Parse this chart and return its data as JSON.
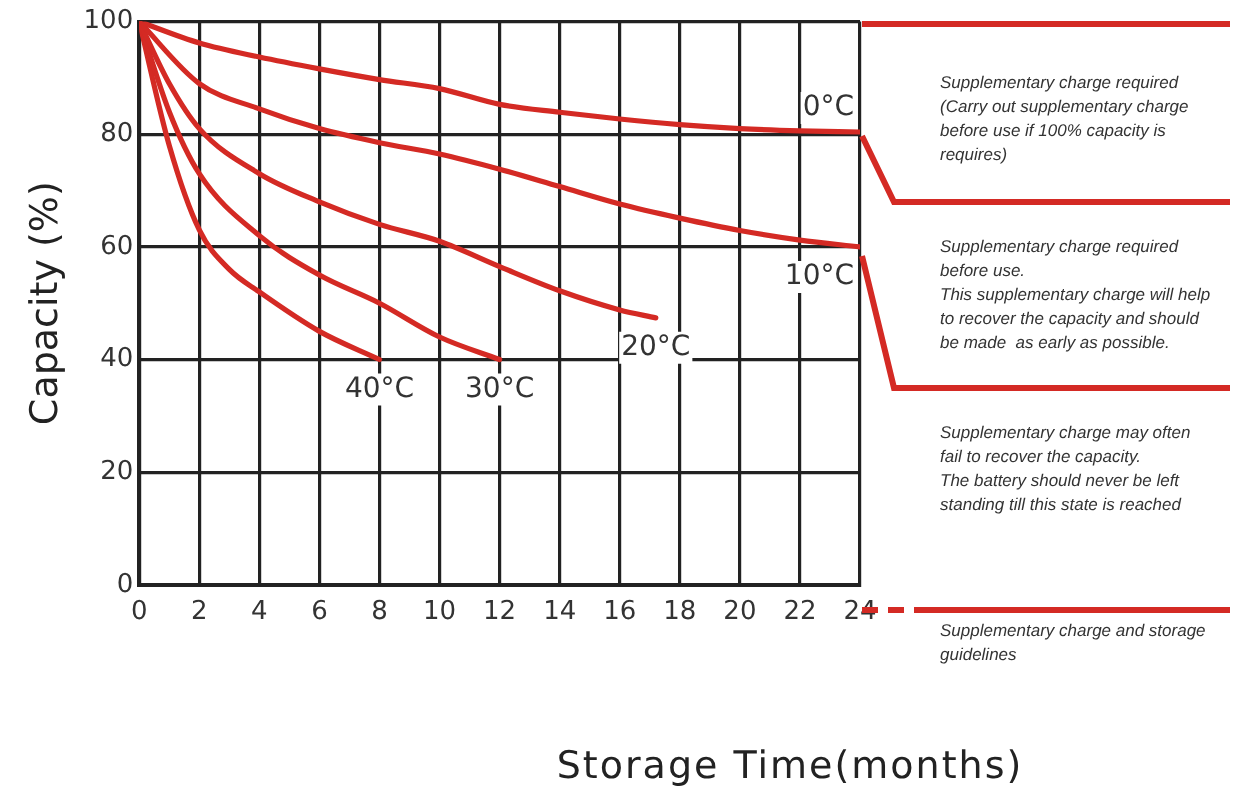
{
  "chart_data": {
    "type": "line",
    "xlabel": "Storage Time(months)",
    "ylabel": "Capacity (%)",
    "x": [
      0,
      2,
      4,
      6,
      8,
      10,
      12,
      14,
      16,
      18,
      20,
      22,
      24
    ],
    "series": [
      {
        "name": "0°C",
        "color": "#d42a24",
        "values": [
          100,
          96.2,
          93.7,
          91.6,
          89.7,
          88.1,
          85.3,
          83.9,
          82.7,
          81.7,
          81,
          80.6,
          80.4
        ]
      },
      {
        "name": "10°C",
        "color": "#d42a24",
        "values": [
          100,
          89,
          84.5,
          81,
          78.5,
          76.5,
          73.8,
          70.7,
          67.6,
          65.1,
          62.9,
          61.2,
          60
        ]
      },
      {
        "name": "20°C",
        "color": "#d42a24",
        "x": [
          0,
          1,
          2,
          4,
          6,
          8,
          10,
          12,
          14,
          16,
          17.2
        ],
        "values": [
          100,
          89,
          81,
          73,
          68,
          64,
          61,
          56.5,
          52.2,
          48.8,
          47.4
        ]
      },
      {
        "name": "30°C",
        "color": "#d42a24",
        "x": [
          0,
          1,
          2,
          4,
          6,
          8,
          10,
          12
        ],
        "values": [
          100,
          84,
          73,
          62,
          55,
          50,
          44,
          40
        ]
      },
      {
        "name": "40°C",
        "color": "#d42a24",
        "x": [
          0,
          1,
          2,
          3,
          4,
          6,
          8
        ],
        "values": [
          100,
          78,
          63,
          56,
          52,
          45,
          40
        ]
      }
    ],
    "xlim": [
      0,
      24
    ],
    "xticks": [
      0,
      2,
      4,
      6,
      8,
      10,
      12,
      14,
      16,
      18,
      20,
      22,
      24
    ],
    "ylim": [
      0,
      100
    ],
    "yticks": [
      0,
      20,
      40,
      60,
      80,
      100
    ],
    "grid": true,
    "legend": false,
    "marker": "none",
    "line_style": "solid",
    "annotations": [
      "Supplementary charge required\n(Carry out supplementary charge\nbefore use if 100% capacity is\nrequires)",
      "Supplementary charge required\nbefore use.\nThis supplementary charge will help\nto recover the capacity and should\nbe made  as early as possible.",
      "Supplementary charge may often\nfail to recover the capacity.\nThe battery should never be left\nstanding till this state is reached",
      "Supplementary charge and storage\nguidelines"
    ]
  }
}
